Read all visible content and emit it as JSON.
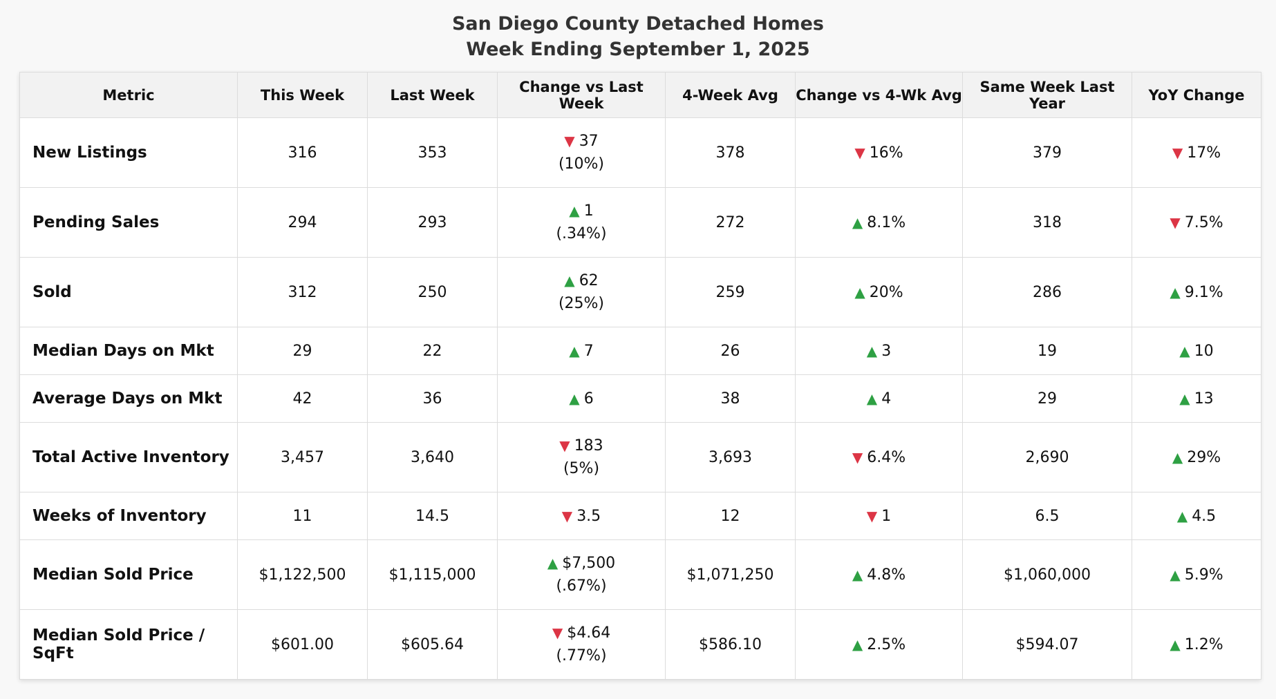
{
  "title": "San Diego County Detached Homes",
  "subtitle": "Week Ending September 1, 2025",
  "colors": {
    "up": "#2ea043",
    "down": "#dc3545"
  },
  "headers": [
    "Metric",
    "This Week",
    "Last Week",
    "Change vs Last Week",
    "4-Week Avg",
    "Change vs 4-Wk Avg",
    "Same Week Last Year",
    "YoY Change"
  ],
  "rows": [
    {
      "metric": "New Listings",
      "this_week": "316",
      "last_week": "353",
      "chg_dir": "down",
      "chg_val": "37",
      "chg_pct": "(10%)",
      "avg4": "378",
      "chg4_dir": "down",
      "chg4_val": "16%",
      "ly": "379",
      "yoy_dir": "down",
      "yoy_val": "17%"
    },
    {
      "metric": "Pending Sales",
      "this_week": "294",
      "last_week": "293",
      "chg_dir": "up",
      "chg_val": "1",
      "chg_pct": "(.34%)",
      "avg4": "272",
      "chg4_dir": "up",
      "chg4_val": "8.1%",
      "ly": "318",
      "yoy_dir": "down",
      "yoy_val": "7.5%"
    },
    {
      "metric": "Sold",
      "this_week": "312",
      "last_week": "250",
      "chg_dir": "up",
      "chg_val": "62",
      "chg_pct": "(25%)",
      "avg4": "259",
      "chg4_dir": "up",
      "chg4_val": "20%",
      "ly": "286",
      "yoy_dir": "up",
      "yoy_val": "9.1%"
    },
    {
      "metric": "Median Days on Mkt",
      "this_week": "29",
      "last_week": "22",
      "chg_dir": "up",
      "chg_val": "7",
      "chg_pct": "",
      "avg4": "26",
      "chg4_dir": "up",
      "chg4_val": "3",
      "ly": "19",
      "yoy_dir": "up",
      "yoy_val": "10"
    },
    {
      "metric": "Average Days on Mkt",
      "this_week": "42",
      "last_week": "36",
      "chg_dir": "up",
      "chg_val": "6",
      "chg_pct": "",
      "avg4": "38",
      "chg4_dir": "up",
      "chg4_val": "4",
      "ly": "29",
      "yoy_dir": "up",
      "yoy_val": "13"
    },
    {
      "metric": "Total Active Inventory",
      "this_week": "3,457",
      "last_week": "3,640",
      "chg_dir": "down",
      "chg_val": "183",
      "chg_pct": "(5%)",
      "avg4": "3,693",
      "chg4_dir": "down",
      "chg4_val": "6.4%",
      "ly": "2,690",
      "yoy_dir": "up",
      "yoy_val": "29%"
    },
    {
      "metric": "Weeks of Inventory",
      "this_week": "11",
      "last_week": "14.5",
      "chg_dir": "down",
      "chg_val": "3.5",
      "chg_pct": "",
      "avg4": "12",
      "chg4_dir": "down",
      "chg4_val": "1",
      "ly": "6.5",
      "yoy_dir": "up",
      "yoy_val": "4.5"
    },
    {
      "metric": "Median Sold Price",
      "this_week": "$1,122,500",
      "last_week": "$1,115,000",
      "chg_dir": "up",
      "chg_val": "$7,500",
      "chg_pct": "(.67%)",
      "avg4": "$1,071,250",
      "chg4_dir": "up",
      "chg4_val": "4.8%",
      "ly": "$1,060,000",
      "yoy_dir": "up",
      "yoy_val": "5.9%"
    },
    {
      "metric": "Median Sold Price / SqFt",
      "this_week": "$601.00",
      "last_week": "$605.64",
      "chg_dir": "down",
      "chg_val": "$4.64",
      "chg_pct": "(.77%)",
      "avg4": "$586.10",
      "chg4_dir": "up",
      "chg4_val": "2.5%",
      "ly": "$594.07",
      "yoy_dir": "up",
      "yoy_val": "1.2%"
    }
  ]
}
